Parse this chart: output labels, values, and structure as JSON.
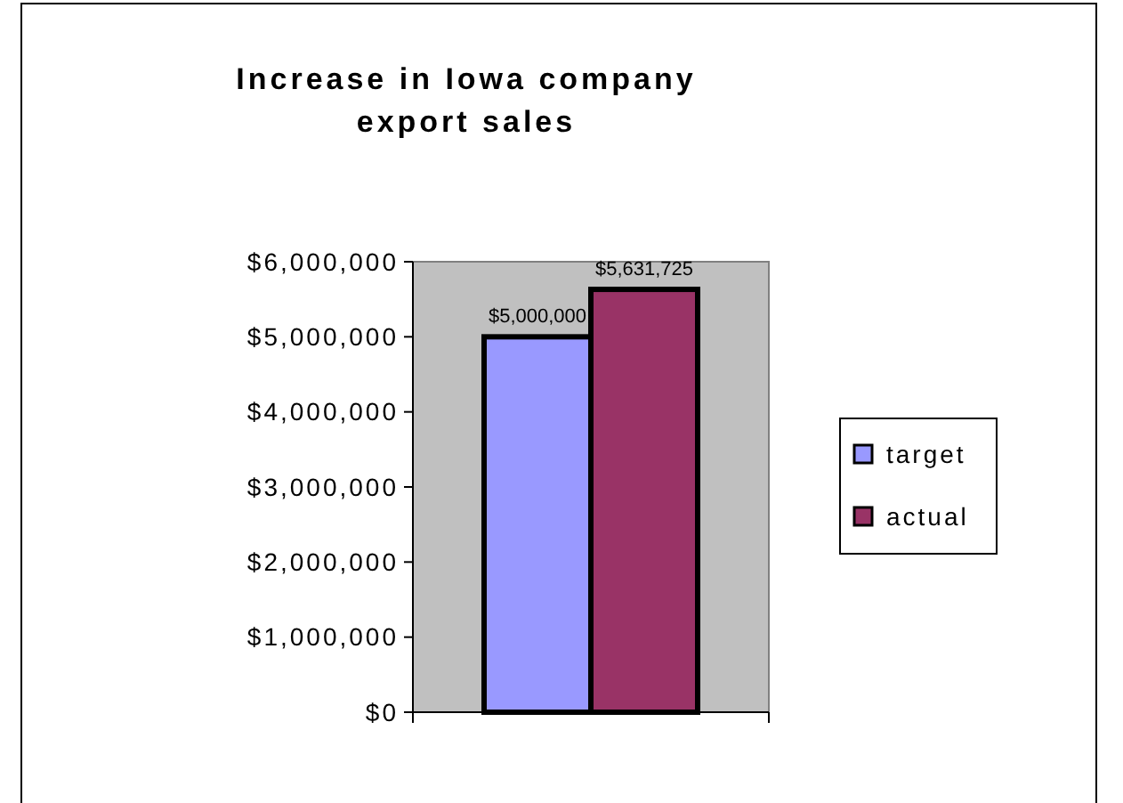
{
  "chart_data": {
    "type": "bar",
    "title": "Increase in Iowa company export sales",
    "categories": [
      null
    ],
    "series": [
      {
        "name": "target",
        "color": "#9999ff",
        "values": [
          5000000
        ],
        "value_labels": [
          "$5,000,000"
        ]
      },
      {
        "name": "actual",
        "color": "#993366",
        "values": [
          5631725
        ],
        "value_labels": [
          "$5,631,725"
        ]
      }
    ],
    "ylim": [
      0,
      6000000
    ],
    "yticks": [
      {
        "value": 0,
        "label": "$0"
      },
      {
        "value": 1000000,
        "label": "$1,000,000"
      },
      {
        "value": 2000000,
        "label": "$2,000,000"
      },
      {
        "value": 3000000,
        "label": "$3,000,000"
      },
      {
        "value": 4000000,
        "label": "$4,000,000"
      },
      {
        "value": 5000000,
        "label": "$5,000,000"
      },
      {
        "value": 6000000,
        "label": "$6,000,000"
      }
    ],
    "legend": "right"
  }
}
